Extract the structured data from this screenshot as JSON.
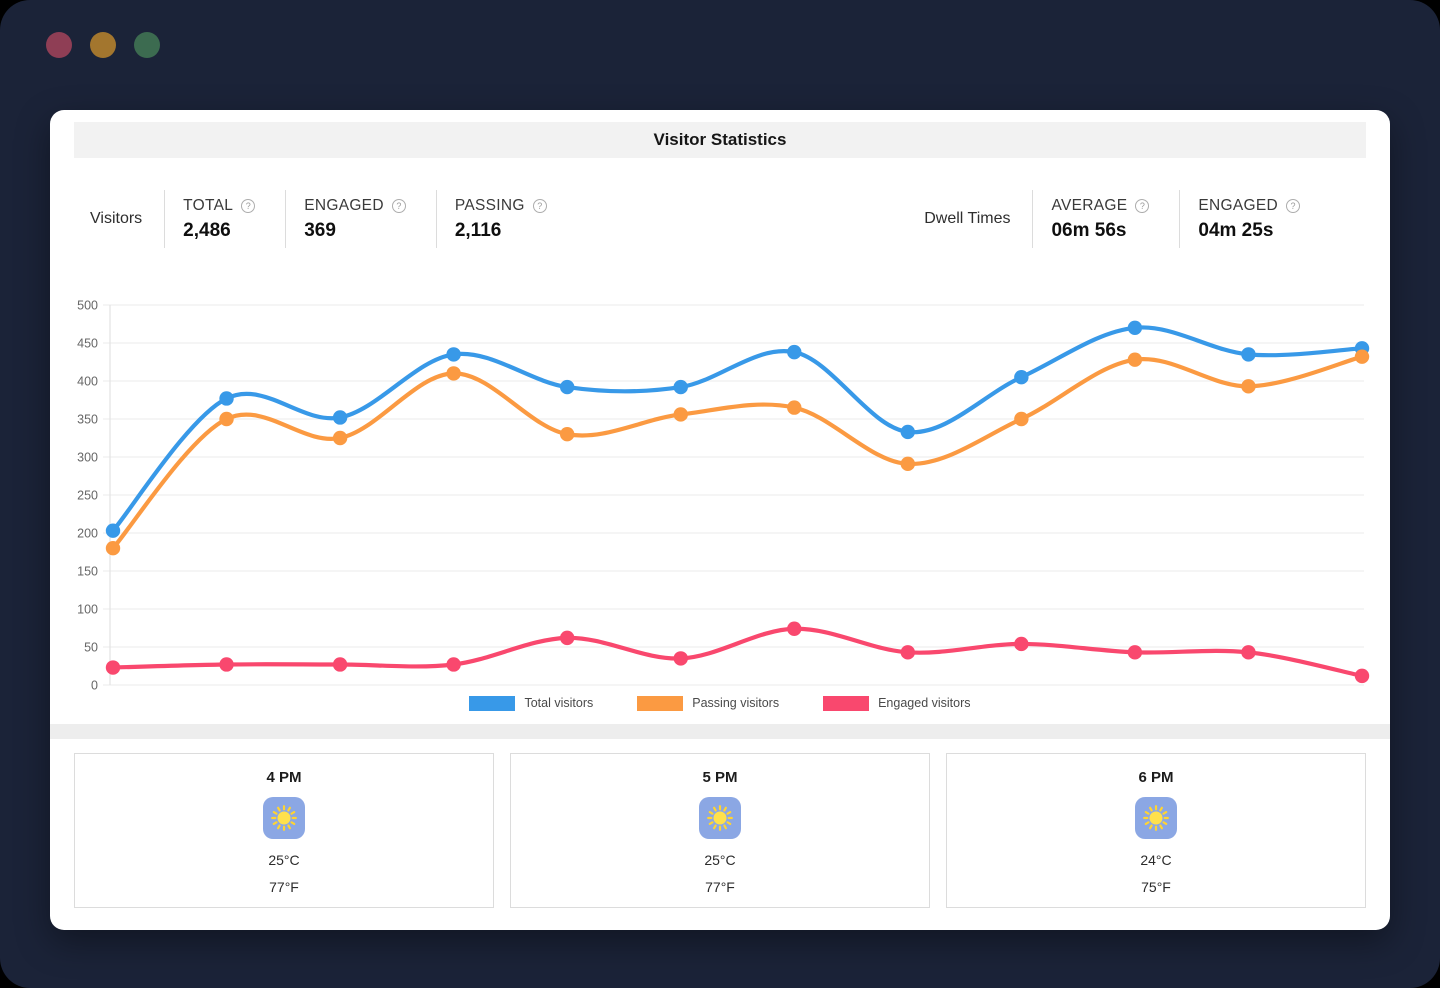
{
  "window": {
    "background_color": "#1B2338",
    "traffic_lights": [
      {
        "name": "close",
        "color": "#8F3E55"
      },
      {
        "name": "minimize",
        "color": "#A3762E"
      },
      {
        "name": "zoom",
        "color": "#3C6B50"
      }
    ]
  },
  "header": {
    "title": "Visitor Statistics"
  },
  "stats": {
    "visitors": {
      "group_label": "Visitors",
      "items": [
        {
          "label": "TOTAL",
          "value": "2,486",
          "help": "?"
        },
        {
          "label": "ENGAGED",
          "value": "369",
          "help": "?"
        },
        {
          "label": "PASSING",
          "value": "2,116",
          "help": "?"
        }
      ]
    },
    "dwell": {
      "group_label": "Dwell Times",
      "items": [
        {
          "label": "AVERAGE",
          "value": "06m 56s",
          "help": "?"
        },
        {
          "label": "ENGAGED",
          "value": "04m 25s",
          "help": "?"
        }
      ]
    }
  },
  "chart_data": {
    "type": "line",
    "num_points": 12,
    "x_labels_visible": false,
    "series": [
      {
        "name": "Total visitors",
        "color": "#3899E8",
        "values": [
          203,
          377,
          352,
          435,
          392,
          392,
          438,
          333,
          405,
          470,
          435,
          443
        ]
      },
      {
        "name": "Passing visitors",
        "color": "#FB9A42",
        "values": [
          180,
          350,
          325,
          410,
          330,
          356,
          365,
          291,
          350,
          428,
          393,
          432
        ]
      },
      {
        "name": "Engaged visitors",
        "color": "#F9486E",
        "values": [
          23,
          27,
          27,
          27,
          62,
          35,
          74,
          43,
          54,
          43,
          43,
          12
        ]
      }
    ],
    "ylim": [
      0,
      500
    ],
    "ytick_step": 50,
    "ytick_labels": [
      "0",
      "50",
      "100",
      "150",
      "200",
      "250",
      "300",
      "350",
      "400",
      "450",
      "500"
    ],
    "grid": true,
    "grid_color": "#EFEFEF",
    "axis_line_color": "#E3E3E3",
    "tick_text_color": "#666666",
    "legend_position": "bottom"
  },
  "weather": {
    "cards": [
      {
        "time": "4 PM",
        "icon": "sun-icon",
        "temp_c": "25°C",
        "temp_f": "77°F"
      },
      {
        "time": "5 PM",
        "icon": "sun-icon",
        "temp_c": "25°C",
        "temp_f": "77°F"
      },
      {
        "time": "6 PM",
        "icon": "sun-icon",
        "temp_c": "24°C",
        "temp_f": "75°F"
      }
    ],
    "icon_bg_color": "#8BA7E4",
    "sun_color": "#FFE14C"
  }
}
